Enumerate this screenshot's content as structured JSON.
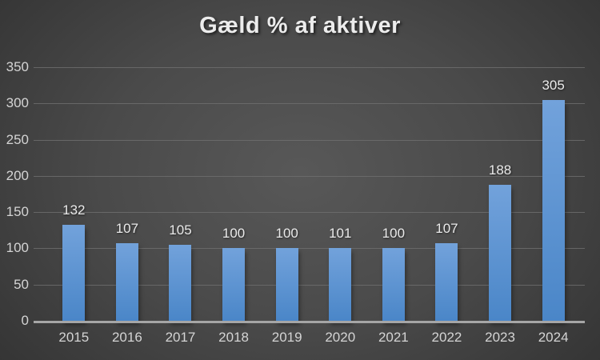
{
  "chart_data": {
    "type": "bar",
    "title": "Gæld % af aktiver",
    "categories": [
      "2015",
      "2016",
      "2017",
      "2018",
      "2019",
      "2020",
      "2021",
      "2022",
      "2023",
      "2024"
    ],
    "values": [
      132,
      107,
      105,
      100,
      100,
      101,
      100,
      107,
      188,
      305
    ],
    "xlabel": "",
    "ylabel": "",
    "ylim": [
      0,
      350
    ],
    "yticks": [
      0,
      50,
      100,
      150,
      200,
      250,
      300,
      350
    ],
    "grid": true,
    "legend": "none",
    "data_labels": true
  },
  "style": {
    "background_center": "#585858",
    "background_edge": "#232323",
    "bar_gradient_top": "#72A2DB",
    "bar_gradient_bottom": "#4A86C8",
    "gridline_color": "#6F6F6F",
    "axis_line_color": "#A6A6A6",
    "tick_label_color": "#D4D4D4",
    "data_label_color": "#EAEAEA",
    "title_color": "#ECECEC"
  }
}
